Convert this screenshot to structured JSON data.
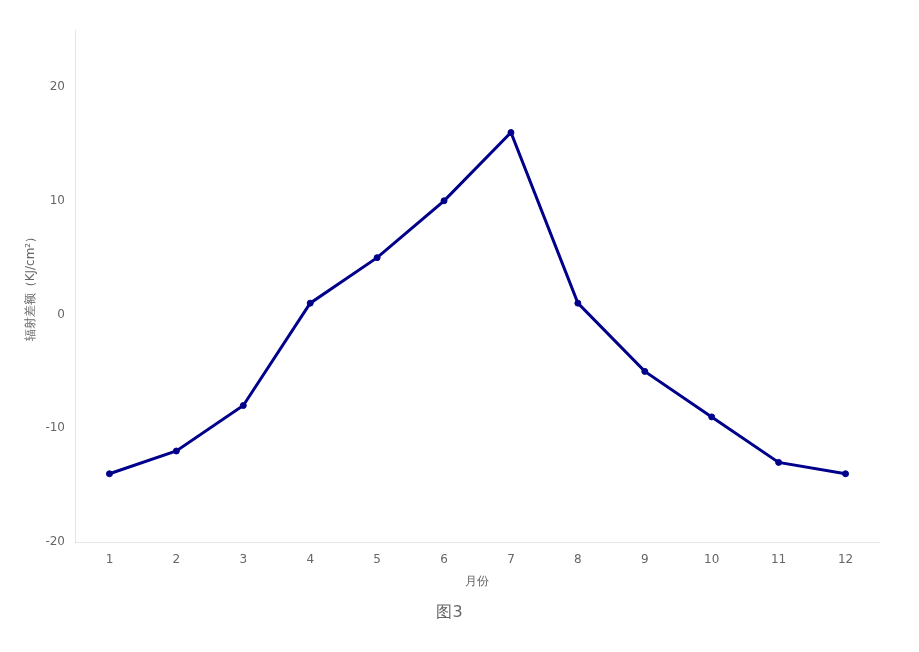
{
  "chart_data": {
    "type": "line",
    "title": "图3",
    "x": [
      1,
      2,
      3,
      4,
      5,
      6,
      7,
      8,
      9,
      10,
      11,
      12
    ],
    "series": [
      {
        "color": "#00008B",
        "marker": "circle",
        "line_style": "solid",
        "values": [
          -14,
          -12,
          -8,
          1,
          5,
          10,
          16,
          1,
          -5,
          -9,
          -13,
          -14
        ]
      }
    ],
    "x_label": "月份",
    "y_label": "辐射差额（KJ/cm²）",
    "xlim": [
      0.5,
      12.5
    ],
    "xticks": [
      1,
      2,
      3,
      4,
      5,
      6,
      7,
      8,
      9,
      10,
      11,
      12
    ],
    "ylim": [
      -20,
      25
    ],
    "yticks": [
      -20,
      -10,
      0,
      10,
      20
    ],
    "grid": false
  }
}
